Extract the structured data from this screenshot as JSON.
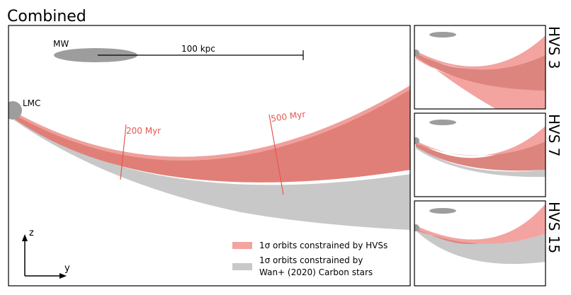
{
  "main_panel": {
    "title": "Combined",
    "mw_label": "MW",
    "scale_label": "100 kpc",
    "lmc_label": "LMC",
    "time_marker_1": "200 Myr",
    "time_marker_2": "500 Myr",
    "axis_z": "z",
    "axis_y": "y",
    "legend": {
      "hvs_label": "1σ orbits constrained by HVSs",
      "wan_line1": "1σ orbits constrained by",
      "wan_line2": "Wan+ (2020) Carbon stars"
    }
  },
  "side_panels": [
    {
      "label": "HVS 3"
    },
    {
      "label": "HVS 7"
    },
    {
      "label": "HVS 15"
    }
  ],
  "colors": {
    "hvs_band": "#e57f78",
    "hvs_band_light": "#f3a3a0",
    "wan_band": "#c8c8c8",
    "galaxy_gray": "#9d9d9d",
    "marker_red": "#e8554e"
  }
}
